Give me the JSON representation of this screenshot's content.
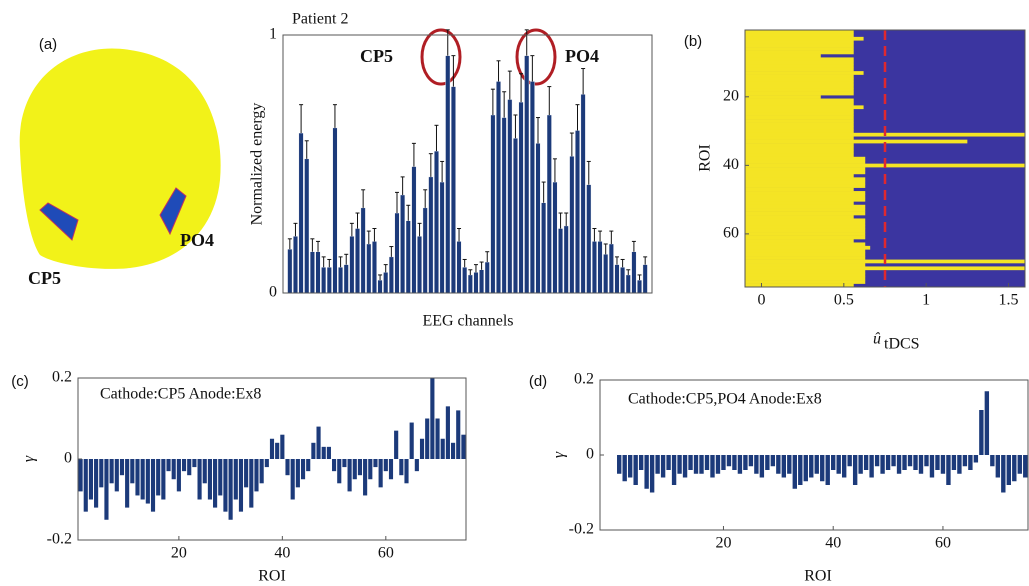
{
  "head_labels": [
    "CP5",
    "PO4"
  ],
  "chart_data": [
    {
      "panel": "(a)",
      "type": "bar",
      "title": "Patient 2",
      "ylabel": "Normalized energy",
      "xlabel": "EEG channels",
      "annotations": [
        "CP5",
        "PO4"
      ],
      "color": "#1c3a7a",
      "ylim": [
        0,
        1
      ],
      "yticks": [
        0,
        1
      ],
      "values": [
        0.17,
        0.22,
        0.62,
        0.52,
        0.16,
        0.16,
        0.1,
        0.1,
        0.64,
        0.1,
        0.11,
        0.22,
        0.25,
        0.33,
        0.19,
        0.2,
        0.05,
        0.08,
        0.14,
        0.31,
        0.38,
        0.28,
        0.49,
        0.22,
        0.33,
        0.45,
        0.55,
        0.43,
        0.92,
        0.8,
        0.2,
        0.1,
        0.07,
        0.08,
        0.09,
        0.12,
        0.69,
        0.82,
        0.68,
        0.75,
        0.6,
        0.74,
        0.92,
        0.82,
        0.58,
        0.35,
        0.69,
        0.43,
        0.25,
        0.26,
        0.53,
        0.63,
        0.77,
        0.42,
        0.2,
        0.2,
        0.15,
        0.19,
        0.11,
        0.1,
        0.07,
        0.16,
        0.05,
        0.11
      ],
      "errors": [
        0.04,
        0.05,
        0.11,
        0.07,
        0.05,
        0.04,
        0.04,
        0.03,
        0.09,
        0.04,
        0.04,
        0.05,
        0.06,
        0.07,
        0.05,
        0.05,
        0.02,
        0.03,
        0.04,
        0.08,
        0.07,
        0.06,
        0.09,
        0.05,
        0.07,
        0.09,
        0.1,
        0.08,
        0.1,
        0.12,
        0.05,
        0.03,
        0.02,
        0.03,
        0.03,
        0.04,
        0.1,
        0.08,
        0.1,
        0.11,
        0.09,
        0.11,
        0.1,
        0.1,
        0.1,
        0.08,
        0.11,
        0.09,
        0.06,
        0.05,
        0.09,
        0.1,
        0.1,
        0.09,
        0.05,
        0.04,
        0.04,
        0.05,
        0.03,
        0.03,
        0.02,
        0.04,
        0.02,
        0.03
      ]
    },
    {
      "panel": "(b)",
      "type": "heatmap",
      "ylabel": "ROI",
      "xlabel": "û",
      "xlabel_subscript": "tDCS",
      "xlim": [
        -0.1,
        1.6
      ],
      "xticks": [
        0,
        0.5,
        1,
        1.5
      ],
      "ylim": [
        0.5,
        75.5
      ],
      "yticks": [
        20,
        40,
        60
      ],
      "threshold": 0.75,
      "colors": {
        "high": "#f4e425",
        "low": "#3b35a0",
        "threshold": "#e0282e"
      },
      "values": [
        0.56,
        0.56,
        0.62,
        0.56,
        0.56,
        0.56,
        0.56,
        0.36,
        0.56,
        0.56,
        0.56,
        0.56,
        0.62,
        0.56,
        0.56,
        0.56,
        0.56,
        0.56,
        0.56,
        0.36,
        0.56,
        0.56,
        0.62,
        0.56,
        0.56,
        0.56,
        0.56,
        0.56,
        0.56,
        0.56,
        1.6,
        0.56,
        1.25,
        0.56,
        0.56,
        0.56,
        0.56,
        0.63,
        0.63,
        1.6,
        0.63,
        0.63,
        0.56,
        0.63,
        0.63,
        0.63,
        0.56,
        0.63,
        0.63,
        0.63,
        0.56,
        0.63,
        0.63,
        0.63,
        0.56,
        0.63,
        0.63,
        0.63,
        0.63,
        0.63,
        0.63,
        0.56,
        0.63,
        0.66,
        0.63,
        0.63,
        0.63,
        1.6,
        0.63,
        1.6,
        0.63,
        0.63,
        0.63,
        0.63,
        0.56
      ]
    },
    {
      "panel": "(c)",
      "type": "bar",
      "annotation": "Cathode:CP5 Anode:Ex8",
      "ylabel": "γ",
      "xlabel": "ROI",
      "color": "#1c3a7a",
      "xlim": [
        0.5,
        75.5
      ],
      "xticks": [
        20,
        40,
        60
      ],
      "ylim": [
        -0.2,
        0.2
      ],
      "yticks": [
        -0.2,
        0,
        0.2
      ],
      "values": [
        -0.08,
        -0.13,
        -0.1,
        -0.12,
        -0.07,
        -0.15,
        -0.06,
        -0.08,
        -0.04,
        -0.12,
        -0.06,
        -0.09,
        -0.1,
        -0.11,
        -0.13,
        -0.09,
        -0.1,
        -0.03,
        -0.05,
        -0.08,
        -0.03,
        -0.04,
        -0.02,
        -0.1,
        -0.06,
        -0.1,
        -0.12,
        -0.09,
        -0.13,
        -0.15,
        -0.1,
        -0.13,
        -0.07,
        -0.12,
        -0.08,
        -0.06,
        -0.02,
        0.05,
        0.04,
        0.06,
        -0.04,
        -0.1,
        -0.07,
        -0.05,
        -0.03,
        0.04,
        0.08,
        0.03,
        0.03,
        -0.03,
        -0.06,
        -0.02,
        -0.08,
        -0.05,
        -0.04,
        -0.09,
        -0.05,
        -0.02,
        -0.07,
        -0.03,
        -0.05,
        0.07,
        -0.04,
        -0.06,
        0.09,
        -0.03,
        0.05,
        0.1,
        0.2,
        0.1,
        0.05,
        0.13,
        0.04,
        0.12,
        0.06
      ]
    },
    {
      "panel": "(d)",
      "type": "bar",
      "annotation": "Cathode:CP5,PO4  Anode:Ex8",
      "ylabel": "γ",
      "xlabel": "ROI",
      "color": "#1c3a7a",
      "xlim": [
        -2.5,
        75.5
      ],
      "xticks": [
        20,
        40,
        60
      ],
      "ylim": [
        -0.2,
        0.2
      ],
      "yticks": [
        -0.2,
        0,
        0.2
      ],
      "values": [
        -0.05,
        -0.07,
        -0.06,
        -0.08,
        -0.04,
        -0.09,
        -0.1,
        -0.05,
        -0.06,
        -0.04,
        -0.08,
        -0.05,
        -0.06,
        -0.04,
        -0.05,
        -0.05,
        -0.04,
        -0.06,
        -0.05,
        -0.04,
        -0.03,
        -0.04,
        -0.05,
        -0.04,
        -0.03,
        -0.05,
        -0.06,
        -0.04,
        -0.03,
        -0.05,
        -0.06,
        -0.05,
        -0.09,
        -0.08,
        -0.07,
        -0.06,
        -0.05,
        -0.07,
        -0.08,
        -0.04,
        -0.05,
        -0.06,
        -0.03,
        -0.08,
        -0.05,
        -0.04,
        -0.06,
        -0.03,
        -0.05,
        -0.04,
        -0.03,
        -0.05,
        -0.04,
        -0.03,
        -0.04,
        -0.05,
        -0.03,
        -0.06,
        -0.04,
        -0.05,
        -0.08,
        -0.04,
        -0.05,
        -0.03,
        -0.04,
        -0.02,
        0.12,
        0.17,
        -0.03,
        -0.06,
        -0.1,
        -0.08,
        -0.07,
        -0.05,
        -0.06
      ]
    }
  ]
}
